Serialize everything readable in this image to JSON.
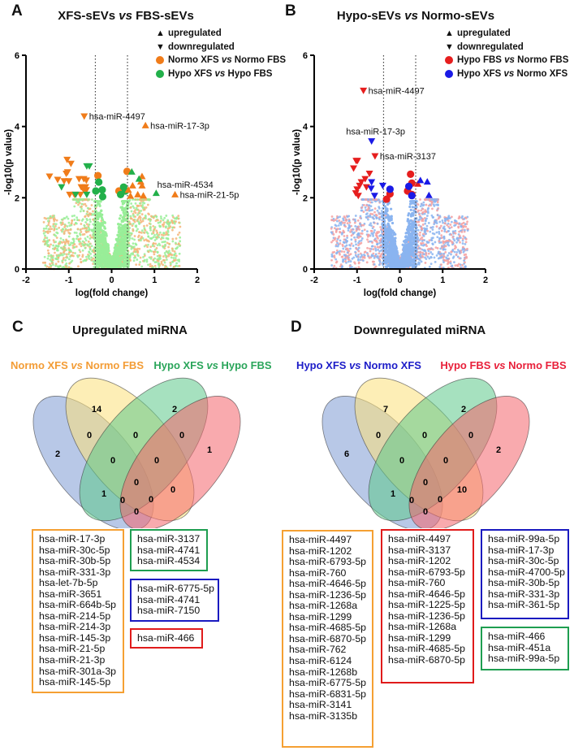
{
  "colors": {
    "orange": "#f07c1a",
    "orange_light": "#f5b57a",
    "green": "#22b04a",
    "green_light": "#98ee98",
    "red": "#e61e1e",
    "red_light": "#f4a0a0",
    "blue": "#1a1ae6",
    "blue_light": "#8ab4f0",
    "venn_blue": "#7d9ad4",
    "venn_yellow": "#fbe07a",
    "venn_green": "#5cc98a",
    "venn_red": "#f4646c",
    "label_orange": "#f39c35",
    "label_green": "#2aa55a",
    "label_blue": "#1c1cc8",
    "label_red": "#e8203a",
    "box_orange": "#f5a033",
    "box_green": "#1e9e50",
    "box_blue": "#1a1ac0",
    "box_red": "#e01b1b"
  },
  "legend_shapes": {
    "up": "▲",
    "down": "▼",
    "dot": "●"
  },
  "chart_data": [
    {
      "panel": "A",
      "type": "scatter",
      "title": "XFS-sEVs vs FBS-sEVs",
      "title_parts": [
        "XFS-sEVs ",
        "vs",
        " FBS-sEVs"
      ],
      "xlabel": "log(fold change)",
      "ylabel": "-log10(p value)",
      "xlim": [
        -2,
        2
      ],
      "ylim": [
        0,
        6
      ],
      "xticks": [
        "-2",
        "-1",
        "0",
        "1",
        "2"
      ],
      "yticks": [
        "0",
        "2",
        "4",
        "6"
      ],
      "thresholds_x": [
        -0.38,
        0.37
      ],
      "legend": {
        "upregulated": "upregulated",
        "downregulated": "downregulated",
        "series": [
          {
            "name": "Normo XFS vs Normo FBS",
            "parts": [
              "Normo XFS ",
              "vs",
              " Normo FBS"
            ],
            "color": "orange"
          },
          {
            "name": "Hypo XFS vs Hypo FBS",
            "parts": [
              "Hypo XFS ",
              "vs",
              " Hypo FBS"
            ],
            "color": "green"
          }
        ],
        "placement": "top-right"
      },
      "annotations": [
        {
          "text": "hsa-miR-4497",
          "x": -0.64,
          "y": 4.29,
          "side": "right"
        },
        {
          "text": "hsa-miR-17-3p",
          "x": 0.79,
          "y": 4.03,
          "side": "right"
        },
        {
          "text": "hsa-miR-4534",
          "x": 0.95,
          "y": 2.37,
          "side": "label-only"
        },
        {
          "text": "hsa-miR-21-5p",
          "x": 1.48,
          "y": 2.09,
          "side": "right"
        }
      ],
      "points": [
        {
          "s": "orange",
          "m": "down",
          "x": -0.64,
          "y": 4.29
        },
        {
          "s": "orange",
          "m": "up",
          "x": 0.79,
          "y": 4.03
        },
        {
          "s": "green",
          "m": "up",
          "x": 1.04,
          "y": 2.13
        },
        {
          "s": "orange",
          "m": "up",
          "x": 1.48,
          "y": 2.09
        },
        {
          "s": "orange",
          "m": "down",
          "x": -1.04,
          "y": 3.07
        },
        {
          "s": "orange",
          "m": "down",
          "x": -0.95,
          "y": 2.96
        },
        {
          "s": "orange",
          "m": "down",
          "x": -1.45,
          "y": 2.6
        },
        {
          "s": "orange",
          "m": "down",
          "x": -1.26,
          "y": 2.51
        },
        {
          "s": "orange",
          "m": "down",
          "x": -1.11,
          "y": 2.47
        },
        {
          "s": "orange",
          "m": "down",
          "x": -1.03,
          "y": 2.72
        },
        {
          "s": "orange",
          "m": "down",
          "x": -1.06,
          "y": 2.68
        },
        {
          "s": "orange",
          "m": "down",
          "x": -1.0,
          "y": 2.47
        },
        {
          "s": "orange",
          "m": "down",
          "x": -0.76,
          "y": 2.53
        },
        {
          "s": "orange",
          "m": "down",
          "x": -0.65,
          "y": 2.53
        },
        {
          "s": "orange",
          "m": "down",
          "x": -0.59,
          "y": 2.49
        },
        {
          "s": "orange",
          "m": "down",
          "x": -0.71,
          "y": 2.3
        },
        {
          "s": "orange",
          "m": "down",
          "x": -0.65,
          "y": 2.22
        },
        {
          "s": "orange",
          "m": "down",
          "x": -0.59,
          "y": 2.22
        },
        {
          "s": "orange",
          "m": "down",
          "x": -0.98,
          "y": 2.09
        },
        {
          "s": "orange",
          "m": "down",
          "x": -0.87,
          "y": 2.09
        },
        {
          "s": "orange",
          "m": "down",
          "x": -0.73,
          "y": 2.09
        },
        {
          "s": "orange",
          "m": "down",
          "x": -0.61,
          "y": 2.3
        },
        {
          "s": "green",
          "m": "down",
          "x": -1.17,
          "y": 2.3
        },
        {
          "s": "green",
          "m": "down",
          "x": -0.84,
          "y": 2.09
        },
        {
          "s": "green",
          "m": "down",
          "x": -0.58,
          "y": 2.89
        },
        {
          "s": "green",
          "m": "down",
          "x": -0.52,
          "y": 2.89
        },
        {
          "s": "green",
          "m": "down",
          "x": -0.58,
          "y": 2.09
        },
        {
          "s": "orange",
          "m": "dot",
          "x": -0.32,
          "y": 2.62
        },
        {
          "s": "orange",
          "m": "dot",
          "x": 0.36,
          "y": 2.74
        },
        {
          "s": "orange",
          "m": "dot",
          "x": 0.17,
          "y": 2.19
        },
        {
          "s": "green",
          "m": "dot",
          "x": -0.3,
          "y": 2.44
        },
        {
          "s": "green",
          "m": "dot",
          "x": -0.37,
          "y": 2.19
        },
        {
          "s": "green",
          "m": "dot",
          "x": -0.22,
          "y": 2.22
        },
        {
          "s": "green",
          "m": "dot",
          "x": -0.21,
          "y": 2.03
        },
        {
          "s": "green",
          "m": "dot",
          "x": 0.21,
          "y": 2.09
        },
        {
          "s": "green",
          "m": "dot",
          "x": 0.28,
          "y": 2.3
        },
        {
          "s": "green",
          "m": "dot",
          "x": 0.32,
          "y": 2.19
        },
        {
          "s": "orange",
          "m": "up",
          "x": 0.49,
          "y": 2.34
        },
        {
          "s": "orange",
          "m": "up",
          "x": 0.71,
          "y": 2.6
        },
        {
          "s": "orange",
          "m": "up",
          "x": 0.68,
          "y": 2.45
        },
        {
          "s": "orange",
          "m": "up",
          "x": 0.71,
          "y": 2.34
        },
        {
          "s": "orange",
          "m": "up",
          "x": 0.61,
          "y": 2.09
        },
        {
          "s": "orange",
          "m": "up",
          "x": 0.74,
          "y": 2.06
        },
        {
          "s": "orange",
          "m": "up",
          "x": 0.39,
          "y": 2.22
        },
        {
          "s": "orange",
          "m": "up",
          "x": 0.44,
          "y": 2.05
        },
        {
          "s": "green",
          "m": "up",
          "x": 0.47,
          "y": 2.73
        },
        {
          "s": "green",
          "m": "up",
          "x": 0.64,
          "y": 2.53
        }
      ],
      "background_colors": [
        "orange_light",
        "green_light"
      ]
    },
    {
      "panel": "B",
      "type": "scatter",
      "title": "Hypo-sEVs vs Normo-sEVs",
      "title_parts": [
        "Hypo-sEVs ",
        "vs",
        " Normo-sEVs"
      ],
      "xlabel": "log(fold change)",
      "ylabel": "-log10(p value)",
      "xlim": [
        -2,
        2
      ],
      "ylim": [
        0,
        6
      ],
      "xticks": [
        "-2",
        "-1",
        "0",
        "1",
        "2"
      ],
      "yticks": [
        "0",
        "2",
        "4",
        "6"
      ],
      "thresholds_x": [
        -0.38,
        0.37
      ],
      "legend": {
        "upregulated": "upregulated",
        "downregulated": "downregulated",
        "series": [
          {
            "name": "Hypo FBS vs Normo FBS",
            "parts": [
              "Hypo FBS ",
              "vs",
              " Normo FBS"
            ],
            "color": "red"
          },
          {
            "name": "Hypo XFS vs Normo XFS",
            "parts": [
              "Hypo XFS ",
              "vs",
              " Normo XFS"
            ],
            "color": "blue"
          }
        ],
        "placement": "top-right"
      },
      "annotations": [
        {
          "text": "hsa-miR-4497",
          "x": -0.85,
          "y": 5.01,
          "side": "right"
        },
        {
          "text": "hsa-miR-17-3p",
          "x": -0.66,
          "y": 3.59,
          "side": "above"
        },
        {
          "text": "hsa-miR-3137",
          "x": -0.58,
          "y": 3.17,
          "side": "right"
        }
      ],
      "points": [
        {
          "s": "red",
          "m": "down",
          "x": -0.85,
          "y": 5.01
        },
        {
          "s": "blue",
          "m": "down",
          "x": -0.66,
          "y": 3.59
        },
        {
          "s": "red",
          "m": "down",
          "x": -0.58,
          "y": 3.17
        },
        {
          "s": "red",
          "m": "down",
          "x": -1.08,
          "y": 2.83
        },
        {
          "s": "red",
          "m": "down",
          "x": -1.02,
          "y": 3.04
        },
        {
          "s": "red",
          "m": "down",
          "x": -0.99,
          "y": 3.04
        },
        {
          "s": "red",
          "m": "down",
          "x": -0.71,
          "y": 2.68
        },
        {
          "s": "red",
          "m": "down",
          "x": -0.81,
          "y": 2.53
        },
        {
          "s": "red",
          "m": "down",
          "x": -0.9,
          "y": 2.44
        },
        {
          "s": "red",
          "m": "down",
          "x": -0.94,
          "y": 2.34
        },
        {
          "s": "red",
          "m": "down",
          "x": -1.0,
          "y": 2.24
        },
        {
          "s": "red",
          "m": "down",
          "x": -1.03,
          "y": 2.13
        },
        {
          "s": "red",
          "m": "down",
          "x": -0.97,
          "y": 2.06
        },
        {
          "s": "red",
          "m": "down",
          "x": -0.78,
          "y": 2.3
        },
        {
          "s": "blue",
          "m": "down",
          "x": -0.66,
          "y": 2.44
        },
        {
          "s": "blue",
          "m": "down",
          "x": -0.67,
          "y": 2.26
        },
        {
          "s": "blue",
          "m": "down",
          "x": -0.59,
          "y": 2.06
        },
        {
          "s": "blue",
          "m": "down",
          "x": -0.4,
          "y": 2.34
        },
        {
          "s": "red",
          "m": "dot",
          "x": 0.25,
          "y": 2.66
        },
        {
          "s": "red",
          "m": "dot",
          "x": 0.28,
          "y": 2.41
        },
        {
          "s": "red",
          "m": "dot",
          "x": 0.18,
          "y": 2.19
        },
        {
          "s": "red",
          "m": "dot",
          "x": 0.28,
          "y": 2.09
        },
        {
          "s": "red",
          "m": "dot",
          "x": -0.31,
          "y": 1.96
        },
        {
          "s": "red",
          "m": "dot",
          "x": -0.23,
          "y": 2.11
        },
        {
          "s": "blue",
          "m": "dot",
          "x": -0.23,
          "y": 2.24
        },
        {
          "s": "blue",
          "m": "dot",
          "x": 0.21,
          "y": 2.32
        },
        {
          "s": "blue",
          "m": "dot",
          "x": 0.28,
          "y": 2.06
        },
        {
          "s": "red",
          "m": "up",
          "x": 0.42,
          "y": 2.39
        },
        {
          "s": "blue",
          "m": "up",
          "x": 0.48,
          "y": 2.49
        },
        {
          "s": "blue",
          "m": "up",
          "x": 0.64,
          "y": 2.45
        },
        {
          "s": "blue",
          "m": "up",
          "x": 0.68,
          "y": 2.07
        }
      ],
      "background_colors": [
        "red_light",
        "blue_light"
      ]
    }
  ],
  "panels": {
    "A": {
      "letter": "A"
    },
    "B": {
      "letter": "B"
    },
    "C": {
      "letter": "C",
      "title": "Upregulated miRNA",
      "set_labels": [
        {
          "parts": [
            "Normo XFS ",
            "vs",
            " Normo FBS"
          ],
          "color": "label_orange"
        },
        {
          "parts": [
            "Hypo XFS ",
            "vs",
            " Hypo FBS"
          ],
          "color": "label_green"
        }
      ],
      "venn_counts": {
        "blue_only": "2",
        "yellow_only": "14",
        "green_only": "2",
        "red_only": "1",
        "blue_yellow": "0",
        "yellow_green": "0",
        "green_red": "0",
        "blue_yellow_green": "0",
        "yellow_green_red": "0",
        "all": "0",
        "yellow_red": "0",
        "blue_green": "1",
        "blue_yellow_red": "0",
        "blue_green_red": "0",
        "blue_red": "0"
      },
      "lists": [
        {
          "color": "box_orange",
          "items": [
            "hsa-miR-17-3p",
            "hsa-miR-30c-5p",
            "hsa-miR-30b-5p",
            "hsa-miR-331-3p",
            "hsa-let-7b-5p",
            "hsa-miR-3651",
            "hsa-miR-664b-5p",
            "hsa-miR-214-5p",
            "hsa-miR-214-3p",
            "hsa-miR-145-3p",
            "hsa-miR-21-5p",
            "hsa-miR-21-3p",
            "hsa-miR-301a-3p",
            "hsa-miR-145-5p"
          ]
        },
        {
          "color": "box_green",
          "items": [
            "hsa-miR-3137",
            "hsa-miR-4741",
            "hsa-miR-4534"
          ]
        },
        {
          "color": "box_blue",
          "items": [
            "hsa-miR-6775-5p",
            "hsa-miR-4741",
            "hsa-miR-7150"
          ]
        },
        {
          "color": "box_red",
          "items": [
            "hsa-miR-466"
          ]
        }
      ]
    },
    "D": {
      "letter": "D",
      "title": "Downregulated miRNA",
      "set_labels": [
        {
          "parts": [
            "Hypo XFS ",
            "vs",
            " Normo XFS"
          ],
          "color": "label_blue"
        },
        {
          "parts": [
            "Hypo FBS ",
            "vs",
            " Normo FBS"
          ],
          "color": "label_red"
        }
      ],
      "venn_counts": {
        "blue_only": "6",
        "yellow_only": "7",
        "green_only": "2",
        "red_only": "2",
        "blue_yellow": "0",
        "yellow_green": "0",
        "green_red": "0",
        "blue_yellow_green": "0",
        "yellow_green_red": "0",
        "all": "0",
        "yellow_red": "10",
        "blue_green": "1",
        "blue_yellow_red": "0",
        "blue_green_red": "0",
        "blue_red": "0"
      },
      "lists": [
        {
          "color": "box_orange",
          "items": [
            "hsa-miR-4497",
            "hsa-miR-1202",
            "hsa-miR-6793-5p",
            "hsa-miR-760",
            "hsa-miR-4646-5p",
            "hsa-miR-1236-5p",
            "hsa-miR-1268a",
            "hsa-miR-1299",
            "hsa-miR-4685-5p",
            "hsa-miR-6870-5p",
            "hsa-miR-762",
            "hsa-miR-6124",
            "hsa-miR-1268b",
            "hsa-miR-6775-5p",
            "hsa-miR-6831-5p",
            "hsa-miR-3141",
            "hsa-miR-3135b"
          ]
        },
        {
          "color": "box_red",
          "items": [
            "hsa-miR-4497",
            "hsa-miR-3137",
            "hsa-miR-1202",
            "hsa-miR-6793-5p",
            "hsa-miR-760",
            "hsa-miR-4646-5p",
            "hsa-miR-1225-5p",
            "hsa-miR-1236-5p",
            "hsa-miR-1268a",
            "hsa-miR-1299",
            "hsa-miR-4685-5p",
            "hsa-miR-6870-5p"
          ]
        },
        {
          "color": "box_blue",
          "items": [
            "hsa-miR-99a-5p",
            "hsa-miR-17-3p",
            "hsa-miR-30c-5p",
            "hsa-miR-4700-5p",
            "hsa-miR-30b-5p",
            "hsa-miR-331-3p",
            "hsa-miR-361-5p"
          ]
        },
        {
          "color": "box_green",
          "items": [
            "hsa-miR-466",
            "hsa-miR-451a",
            "hsa-miR-99a-5p"
          ]
        }
      ]
    }
  }
}
